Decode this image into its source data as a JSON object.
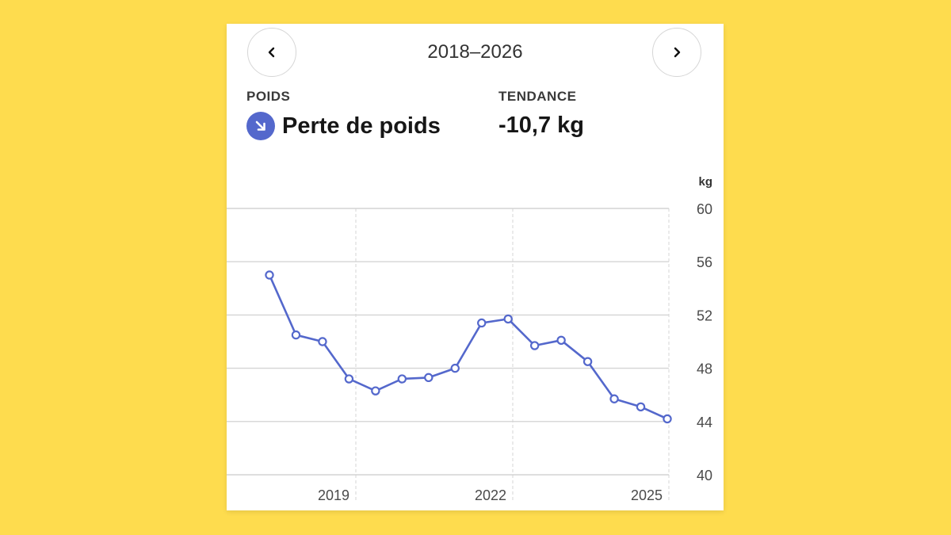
{
  "header": {
    "range_title": "2018–2026",
    "prev_icon": "chevron-left-icon",
    "next_icon": "chevron-right-icon"
  },
  "weight": {
    "label": "POIDS",
    "value": "Perte de poids",
    "icon": "arrow-down-right-icon"
  },
  "trend": {
    "label": "TENDANCE",
    "value": "-10,7 kg"
  },
  "colors": {
    "accent": "#5468CC",
    "background": "#FEDC4E",
    "grid": "#d4d4d4"
  },
  "chart_data": {
    "type": "line",
    "unit": "kg",
    "ylim": [
      40,
      60
    ],
    "y_ticks": [
      40,
      44,
      48,
      52,
      56,
      60
    ],
    "x_ticks": [
      "2019",
      "2022",
      "2025"
    ],
    "series": [
      {
        "name": "Poids",
        "values": [
          55.0,
          50.5,
          50.0,
          47.2,
          46.3,
          47.2,
          47.3,
          48.0,
          51.4,
          51.7,
          49.7,
          50.1,
          48.5,
          45.7,
          45.1,
          44.2
        ]
      }
    ]
  }
}
